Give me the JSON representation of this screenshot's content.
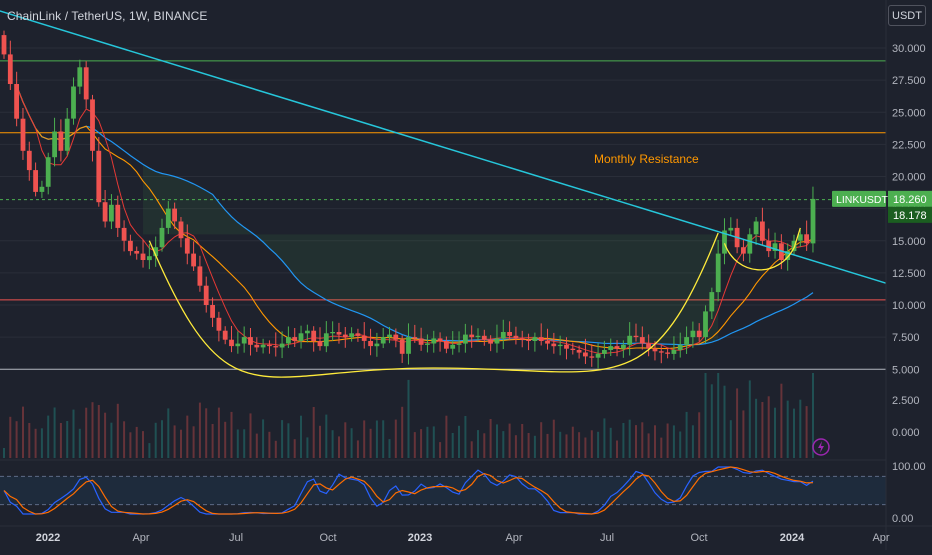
{
  "header": {
    "title": "ChainLink / TetherUS, 1W, BINANCE",
    "currency_button": "USDT"
  },
  "colors": {
    "background": "#1e222d",
    "up": "#26a69a",
    "up_bright": "#4caf50",
    "down": "#ef5350",
    "trendline": "#26c6da",
    "cup_curve": "#ffeb3b",
    "resistance_line": "#ff9800",
    "support_line": "#ef5350",
    "top_line": "#4caf50",
    "ma_fast": "#e53935",
    "ma_mid": "#ff9800",
    "ma_slow": "#2196f3",
    "stoch_k": "#2962ff",
    "stoch_d": "#ff6d00"
  },
  "annotations": {
    "monthly_resistance": "Monthly Resistance"
  },
  "price_labels": {
    "symbol": "LINKUSDT",
    "last": "18.260",
    "secondary": "18.178"
  },
  "chart_data": {
    "type": "candlestick",
    "x_labels": [
      "2022",
      "Apr",
      "Jul",
      "Oct",
      "2023",
      "Apr",
      "Jul",
      "Oct",
      "2024",
      "Apr"
    ],
    "y_ticks": [
      "30.000",
      "27.500",
      "25.000",
      "22.500",
      "20.000",
      "17.500",
      "15.000",
      "12.500",
      "10.000",
      "7.500",
      "5.000"
    ],
    "y_range": [
      4.0,
      31.5
    ],
    "volume_ticks": [
      "2.500",
      "0.000"
    ],
    "oscillator_ticks": [
      "100.00",
      "0.00"
    ],
    "horizontal_levels": [
      {
        "name": "top",
        "value": 29.0
      },
      {
        "name": "monthly_resistance",
        "value": 23.4
      },
      {
        "name": "dashed_current",
        "value": 18.2
      },
      {
        "name": "support",
        "value": 10.4
      },
      {
        "name": "bottom",
        "value": 5.0
      }
    ],
    "trendline": {
      "start": [
        0,
        33.5
      ],
      "end": [
        118,
        11.7
      ]
    },
    "last_price": 18.26,
    "candles_weekly_close": [
      29.5,
      27.2,
      24.5,
      22.0,
      20.5,
      18.8,
      19.2,
      21.5,
      23.5,
      22.0,
      24.5,
      27.0,
      28.5,
      26.0,
      22.0,
      18.0,
      16.5,
      17.8,
      16.0,
      15.0,
      14.2,
      14.0,
      13.5,
      13.8,
      14.5,
      16.0,
      17.5,
      16.5,
      15.2,
      14.0,
      13.0,
      11.5,
      10.0,
      9.0,
      8.0,
      7.3,
      6.8,
      7.0,
      7.5,
      6.9,
      6.7,
      6.9,
      6.8,
      6.7,
      7.0,
      7.5,
      7.2,
      7.8,
      8.0,
      7.2,
      6.8,
      7.8,
      7.9,
      7.7,
      7.5,
      7.8,
      7.6,
      7.2,
      6.8,
      7.0,
      7.5,
      7.7,
      7.3,
      6.2,
      7.5,
      7.4,
      6.9,
      7.0,
      7.4,
      7.2,
      6.6,
      6.9,
      7.0,
      7.7,
      7.5,
      7.6,
      7.3,
      7.0,
      7.4,
      7.9,
      7.6,
      7.4,
      7.3,
      7.2,
      7.5,
      7.2,
      7.0,
      6.8,
      6.9,
      6.6,
      6.5,
      6.3,
      6.0,
      5.9,
      6.2,
      6.5,
      6.8,
      6.6,
      6.9,
      7.6,
      7.5,
      7.0,
      6.6,
      6.4,
      6.3,
      6.2,
      6.5,
      6.9,
      7.5,
      8.0,
      7.5,
      9.5,
      11.0,
      14.0,
      15.8,
      16.0,
      14.5,
      14.0,
      15.5,
      16.5,
      15.0,
      14.2,
      14.8,
      13.5,
      14.2,
      15.0,
      15.5,
      14.8,
      18.26
    ],
    "series": [
      {
        "name": "MA fast"
      },
      {
        "name": "MA mid"
      },
      {
        "name": "MA slow"
      },
      {
        "name": "Stoch %K"
      },
      {
        "name": "Stoch %D"
      }
    ]
  }
}
